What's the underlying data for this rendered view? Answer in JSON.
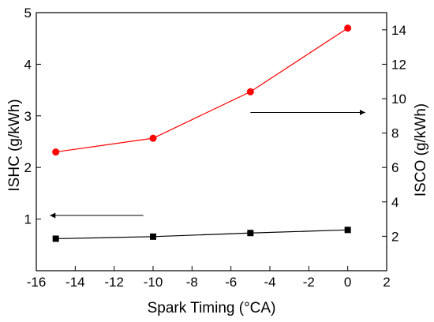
{
  "chart_data": {
    "type": "line",
    "title": "",
    "xlabel": "Spark Timing (°CA)",
    "ylabel_left": "ISHC (g/kWh)",
    "ylabel_right": "ISCO (g/kWh)",
    "x_range": [
      -16,
      2
    ],
    "x_ticks": [
      -16,
      -14,
      -12,
      -10,
      -8,
      -6,
      -4,
      -2,
      0,
      2
    ],
    "y_left_range": [
      0,
      5
    ],
    "y_left_ticks": [
      1,
      2,
      3,
      4,
      5
    ],
    "y_right_range": [
      0,
      15
    ],
    "y_right_ticks": [
      2,
      4,
      6,
      8,
      10,
      12,
      14
    ],
    "grid": false,
    "legend": "none",
    "series": [
      {
        "axis": "left",
        "color": "#000000",
        "marker": "square",
        "x": [
          -15,
          -10,
          -5,
          0
        ],
        "y": [
          0.62,
          0.66,
          0.73,
          0.79
        ]
      },
      {
        "axis": "right",
        "color": "#ff0000",
        "marker": "circle",
        "x": [
          -15,
          -10,
          -5,
          0
        ],
        "y": [
          6.9,
          7.7,
          10.4,
          14.1
        ]
      }
    ],
    "annotations": [
      {
        "type": "arrow",
        "direction": "left",
        "points_to": "left-axis",
        "x": [
          -10.5,
          -15.3
        ],
        "y_left": 1.07
      },
      {
        "type": "arrow",
        "direction": "right",
        "points_to": "right-axis",
        "x": [
          -5,
          0.9
        ],
        "y_right": 9.2
      }
    ]
  }
}
